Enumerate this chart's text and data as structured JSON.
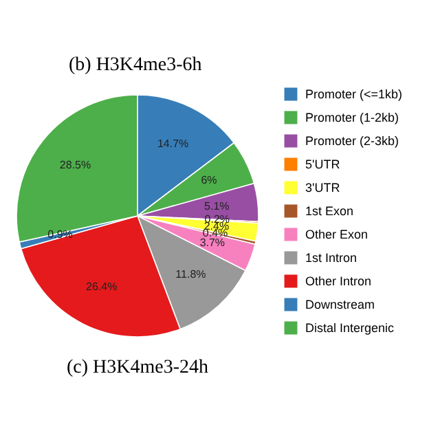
{
  "chart_data": {
    "type": "pie",
    "title": "(b) H3K4me3-6h",
    "categories": [
      "Promoter (<=1kb)",
      "Promoter (1-2kb)",
      "Promoter (2-3kb)",
      "5'UTR",
      "3'UTR",
      "1st Exon",
      "Other Exon",
      "1st Intron",
      "Other Intron",
      "Downstream",
      "Distal Intergenic"
    ],
    "values": [
      14.7,
      6,
      5.1,
      0.2,
      2.4,
      0.4,
      3.7,
      11.8,
      26.4,
      0.9,
      28.5
    ],
    "value_labels": [
      "14.7%",
      "6%",
      "5.1%",
      "0.2%",
      "2.4%",
      "0.4%",
      "3.7%",
      "11.8%",
      "26.4%",
      "0.9%",
      "28.5%"
    ],
    "colors": [
      "#377eb8",
      "#4daf4a",
      "#984ea3",
      "#ff7f00",
      "#ffff33",
      "#a65628",
      "#f781bf",
      "#999999",
      "#e41a1c",
      "#377eb8",
      "#4daf4a"
    ],
    "legend": "right",
    "annotations": [
      "(c) H3K4me3-24h"
    ]
  }
}
